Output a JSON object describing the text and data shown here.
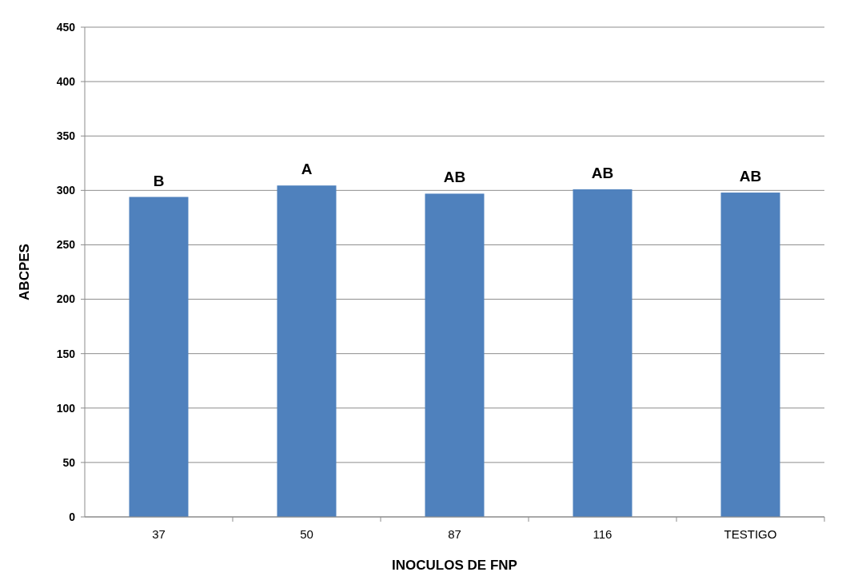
{
  "chart_data": {
    "type": "bar",
    "xlabel": "INOCULOS DE FNP",
    "ylabel": "ABCPES",
    "categories": [
      "37",
      "50",
      "87",
      "116",
      "TESTIGO"
    ],
    "values": [
      294,
      304.5,
      297,
      301,
      298
    ],
    "color": "#4f81bd",
    "ylim": [
      0,
      450
    ],
    "yticks": [
      0,
      50,
      100,
      150,
      200,
      250,
      300,
      350,
      400,
      450
    ],
    "grid": "y",
    "annotations": [
      {
        "text": "B",
        "x": "37",
        "y": 294
      },
      {
        "text": "A",
        "x": "50",
        "y": 304.5
      },
      {
        "text": "AB",
        "x": "87",
        "y": 297
      },
      {
        "text": "AB",
        "x": "116",
        "y": 301
      },
      {
        "text": "AB",
        "x": "TESTIGO",
        "y": 298
      }
    ]
  }
}
